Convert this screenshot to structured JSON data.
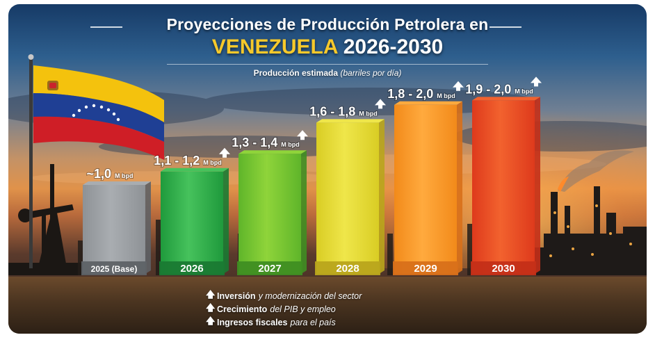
{
  "header": {
    "title_line1": "Proyecciones de Producción Petrolera en",
    "title_country": "VENEZUELA",
    "title_years": "2026-2030",
    "subtitle_main": "Producción estimada",
    "subtitle_unit": "(barriles por día)"
  },
  "colors": {
    "accent_yellow": "#f6c92b",
    "flag_yellow": "#f4c20d",
    "flag_blue": "#1f3f94",
    "flag_red": "#cf1e26"
  },
  "chart_data": {
    "type": "bar",
    "title": "Proyecciones de Producción Petrolera en VENEZUELA 2026-2030",
    "ylabel": "Producción estimada (barriles por día)",
    "unit": "M bpd",
    "categories": [
      "2025 (Base)",
      "2026",
      "2027",
      "2028",
      "2029",
      "2030"
    ],
    "values": [
      1.0,
      1.15,
      1.35,
      1.7,
      1.9,
      1.95
    ],
    "value_labels": [
      "~1,0",
      "1,1 - 1,2",
      "1,3 - 1,4",
      "1,6 - 1,8",
      "1,8 - 2,0",
      "1,9 - 2,0"
    ],
    "label_units": [
      "M bpd",
      "M bpd",
      "M bpd",
      "M bpd",
      "M bpd",
      "M bpd"
    ],
    "trend_up": [
      false,
      true,
      true,
      true,
      true,
      true
    ],
    "bar_colors": [
      "#8e9296",
      "#1f9a3c",
      "#5fb52a",
      "#d9cd24",
      "#f28a1a",
      "#de3a1c"
    ],
    "bar_colors_light": [
      "#a9adb1",
      "#46c25c",
      "#8fd43a",
      "#efe64a",
      "#ffaa3e",
      "#f2622e"
    ],
    "label_colors": [
      "#5e6266",
      "#1a7a33",
      "#3f8e22",
      "#b9a51c",
      "#d8701a",
      "#c42f18"
    ],
    "legend": "none",
    "grid": false
  },
  "bullets": [
    {
      "icon": "arrow-up-icon",
      "arrow": "🡅",
      "strong": "Inversión",
      "rest": "y modernización del sector"
    },
    {
      "icon": "arrow-up-icon",
      "arrow": "🡅",
      "strong": "Crecimiento",
      "rest": "del PIB y empleo"
    },
    {
      "icon": "arrow-up-icon",
      "arrow": "🡅",
      "strong": "Ingresos fiscales",
      "rest": "para el país"
    }
  ]
}
